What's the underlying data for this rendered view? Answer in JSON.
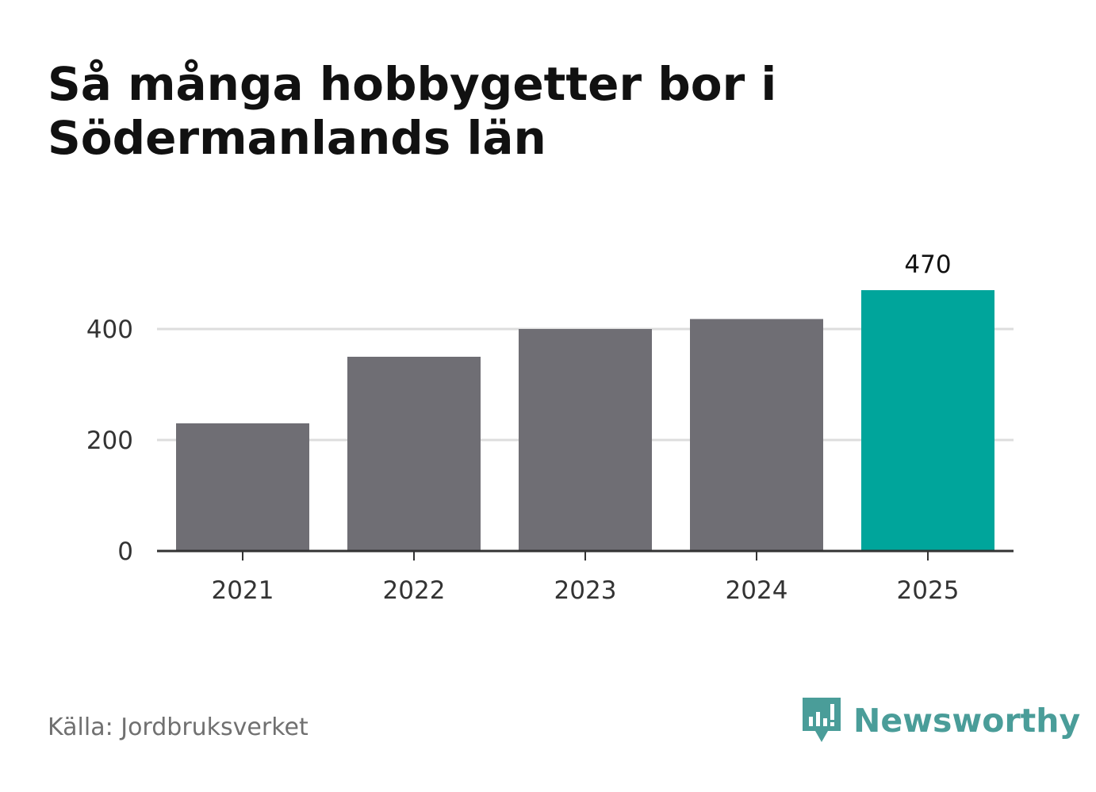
{
  "title_line1": "Så många hobbygetter bor i",
  "title_line2": "Södermanlands län",
  "source": "Källa: Jordbruksverket",
  "brand": {
    "name": "Newsworthy",
    "icon": "newsworthy-logo-icon",
    "color": "#4a9d99"
  },
  "colors": {
    "bar": "#6f6e74",
    "highlight": "#00a59b",
    "grid": "#dddddd",
    "axis": "#333333"
  },
  "chart_data": {
    "type": "bar",
    "categories": [
      "2021",
      "2022",
      "2023",
      "2024",
      "2025"
    ],
    "values": [
      230,
      350,
      400,
      418,
      470
    ],
    "highlight_index": 4,
    "data_labels": [
      null,
      null,
      null,
      null,
      "470"
    ],
    "yticks": [
      "0",
      "200",
      "400"
    ],
    "ytick_values": [
      0,
      200,
      400
    ],
    "ylim": [
      0,
      500
    ],
    "xlabel": "",
    "ylabel": "",
    "grid": true,
    "legend": "none"
  }
}
